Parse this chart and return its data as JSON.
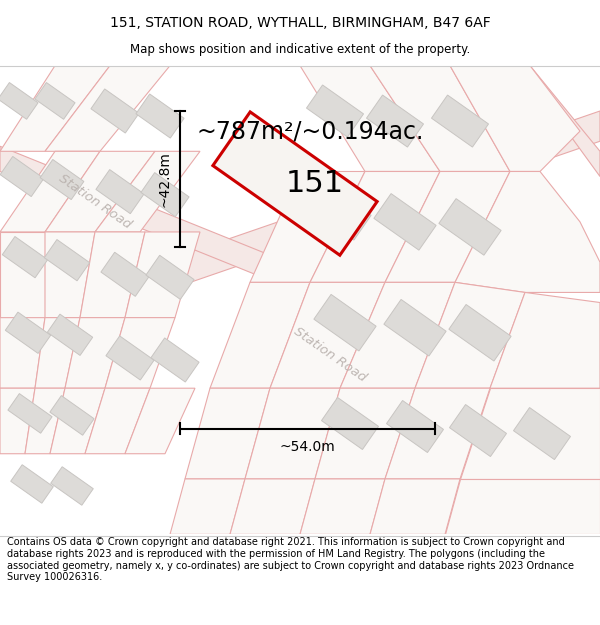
{
  "title_line1": "151, STATION ROAD, WYTHALL, BIRMINGHAM, B47 6AF",
  "title_line2": "Map shows position and indicative extent of the property.",
  "area_text": "~787m²/~0.194ac.",
  "label_151": "151",
  "dim_width": "~54.0m",
  "dim_height": "~42.8m",
  "footer_text": "Contains OS data © Crown copyright and database right 2021. This information is subject to Crown copyright and database rights 2023 and is reproduced with the permission of HM Land Registry. The polygons (including the associated geometry, namely x, y co-ordinates) are subject to Crown copyright and database rights 2023 Ordnance Survey 100026316.",
  "map_bg": "#f7f5f2",
  "parcel_edge": "#e8aaaa",
  "parcel_fill": "#faf8f6",
  "building_fill": "#dddbd8",
  "building_edge": "#c8c5c2",
  "road_fill": "#f5e8e6",
  "road_edge": "#e8aaaa",
  "plot_color": "#cc0000",
  "plot_fill": "#f7f4f1",
  "station_road_color": "#b8b0ac",
  "title_fontsize": 10,
  "subtitle_fontsize": 8.5,
  "area_fontsize": 17,
  "dim_fontsize": 10,
  "label_fontsize": 22,
  "footer_fontsize": 7.0
}
